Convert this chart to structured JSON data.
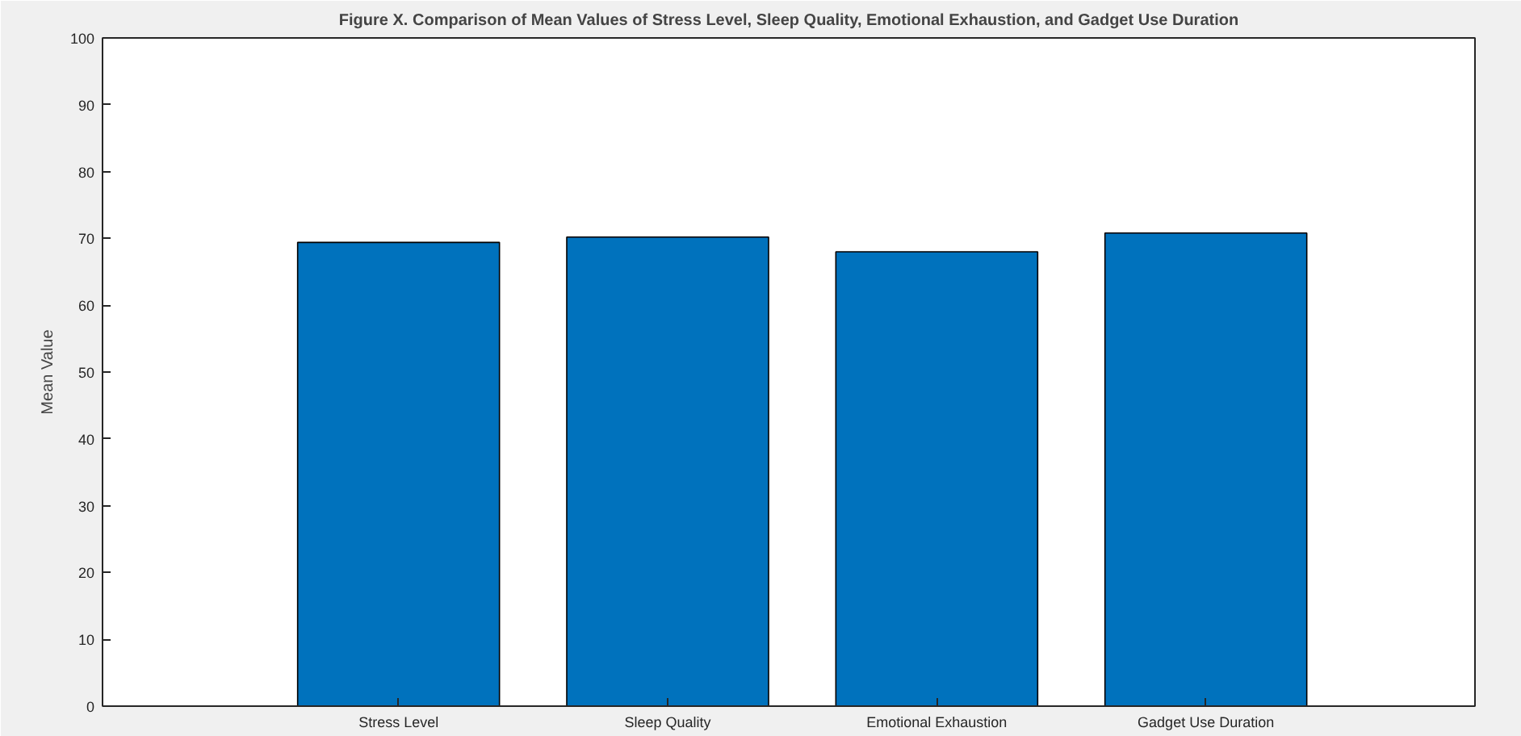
{
  "chart_data": {
    "type": "bar",
    "title": "Figure X. Comparison of Mean Values of Stress Level, Sleep Quality, Emotional Exhaustion, and Gadget Use Duration",
    "ylabel": "Mean Value",
    "categories": [
      "Stress Level",
      "Sleep Quality",
      "Emotional Exhaustion",
      "Gadget Use Duration"
    ],
    "values": [
      69.4,
      70.2,
      68.0,
      70.8
    ],
    "color": "#0072bd",
    "ylim": [
      0,
      100
    ],
    "yticks": [
      0,
      10,
      20,
      30,
      40,
      50,
      60,
      70,
      80,
      90,
      100
    ],
    "grid": false
  }
}
